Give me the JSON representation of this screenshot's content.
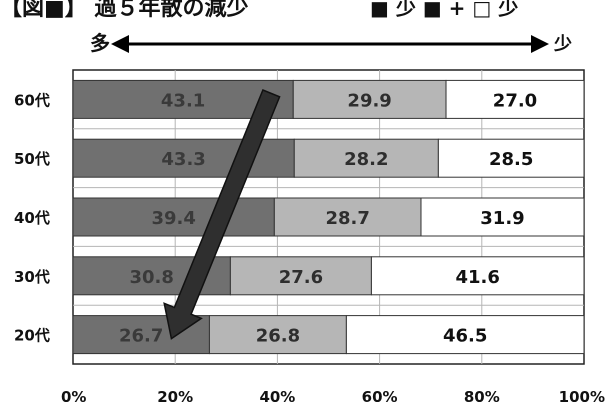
{
  "header": {
    "title": "【図■】 過５年散の減少",
    "legend_text": "■ 少 ■ + □ 少"
  },
  "direction_arrow": {
    "left_label": "多",
    "right_label": "少"
  },
  "colors": {
    "seg1": "#707070",
    "seg2": "#b6b6b6",
    "seg3": "#ffffff",
    "grid": "#b5b5b5",
    "border": "#222222",
    "arrow": "#2f2f2f",
    "seg1_text": "#3a3a3a",
    "seg2_text": "#2e2e2e",
    "seg3_text": "#111111"
  },
  "chart_data": {
    "type": "bar",
    "orientation": "horizontal",
    "stacked": true,
    "categories": [
      "60代",
      "50代",
      "40代",
      "30代",
      "20代"
    ],
    "series": [
      {
        "values": [
          43.1,
          43.3,
          39.4,
          30.8,
          26.7
        ]
      },
      {
        "values": [
          29.9,
          28.2,
          28.7,
          27.6,
          26.8
        ]
      },
      {
        "values": [
          27.0,
          28.5,
          31.9,
          41.6,
          46.5
        ]
      }
    ],
    "x_ticks": [
      "0%",
      "20%",
      "40%",
      "60%",
      "80%",
      "100%"
    ],
    "xlim": [
      0,
      100
    ],
    "grid": true,
    "annotation": "arrow from top bar boundary down-left to bottom bar boundary"
  }
}
